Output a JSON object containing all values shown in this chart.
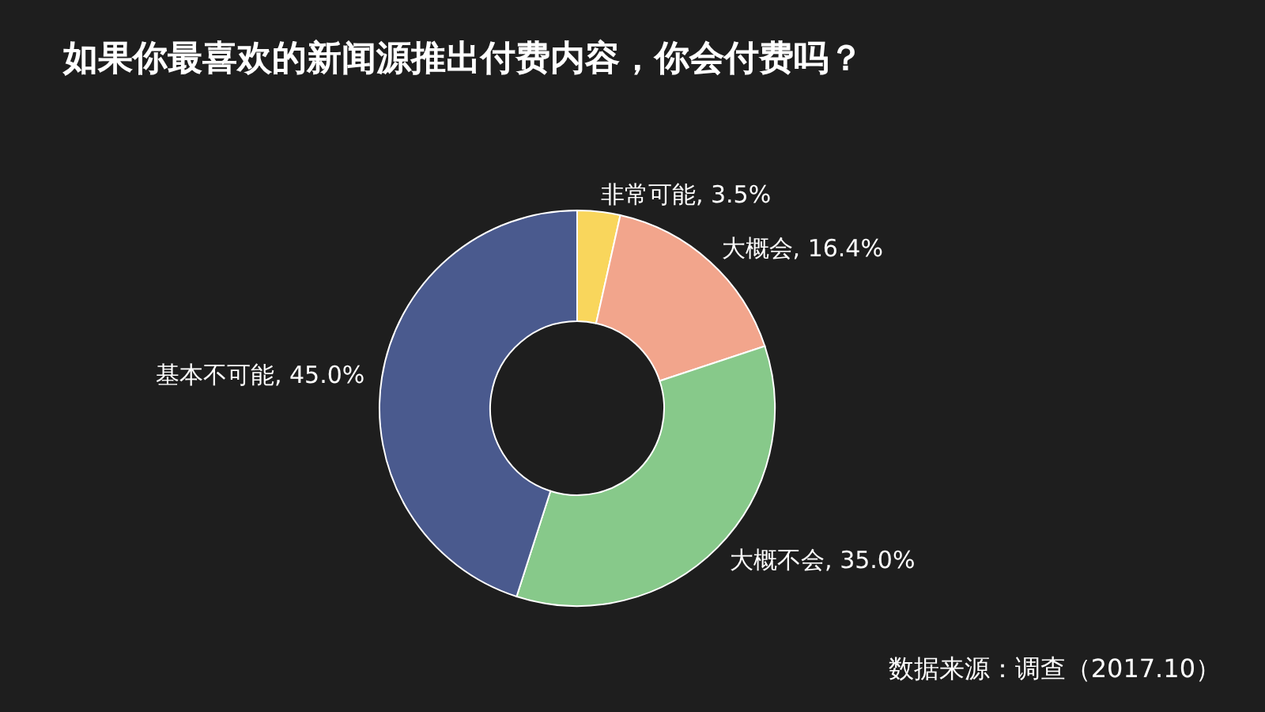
{
  "chart_data": {
    "type": "donut",
    "title": "如果你最喜欢的新闻源推出付费内容，你会付费吗？",
    "categories": [
      "非常可能",
      "大概会",
      "大概不会",
      "基本不可能"
    ],
    "values": [
      3.5,
      16.4,
      35.0,
      45.0
    ],
    "value_labels": [
      "3.5%",
      "16.4%",
      "35.0%",
      "45.0%"
    ],
    "colors": [
      "#f9d65c",
      "#f2a58c",
      "#87c98a",
      "#4a5a8e"
    ],
    "annotations": [
      "数据来源：调查（2017.10）"
    ]
  }
}
